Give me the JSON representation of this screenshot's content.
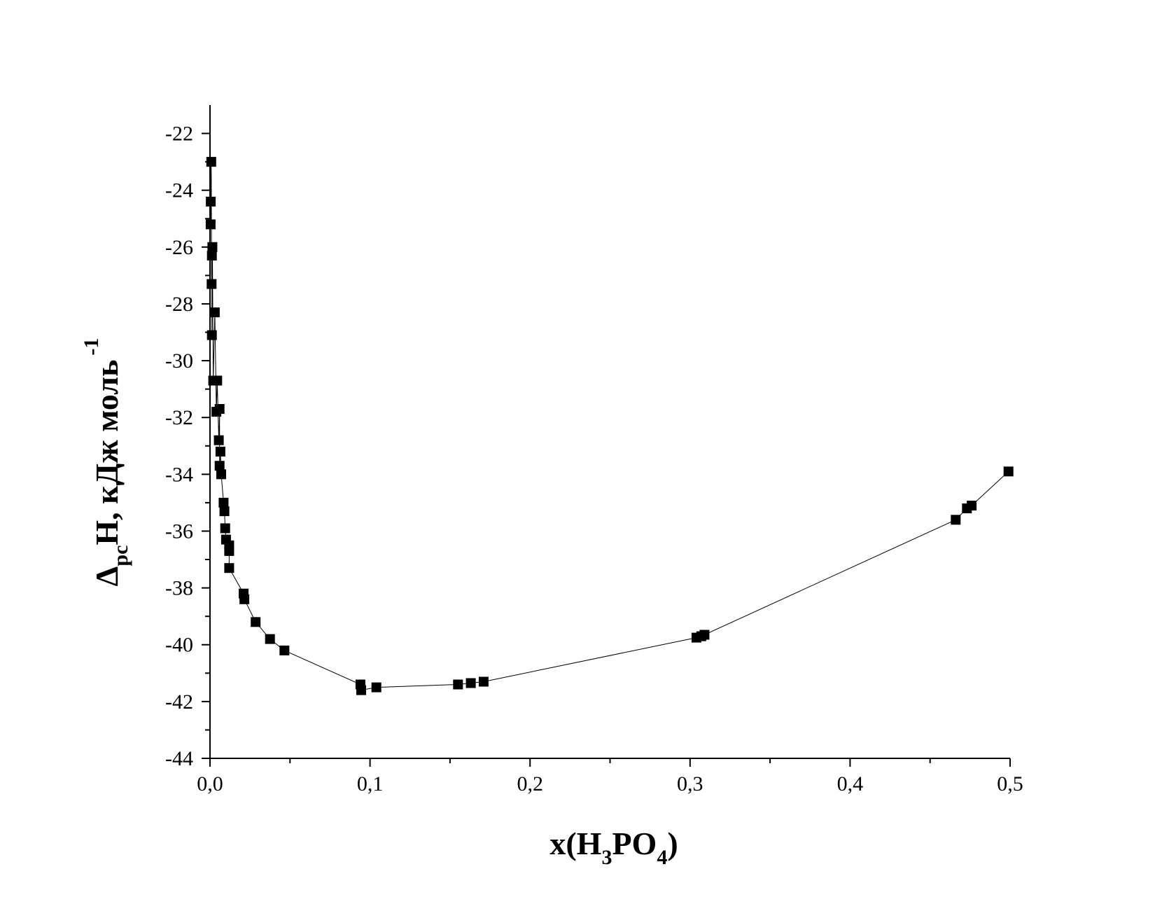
{
  "chart_data": {
    "type": "scatter",
    "xlabel": {
      "main": "x(H",
      "sub1": "3",
      "mid": "PO",
      "sub2": "4",
      "end": ")"
    },
    "ylabel": {
      "delta": "Δ",
      "sub": "рс",
      "main": "H, кДж моль",
      "sup": "-1"
    },
    "xlim": [
      0,
      0.5
    ],
    "ylim": [
      -44,
      -21
    ],
    "x_ticks": [
      {
        "value": 0.0,
        "label": "0,0"
      },
      {
        "value": 0.1,
        "label": "0,1"
      },
      {
        "value": 0.2,
        "label": "0,2"
      },
      {
        "value": 0.3,
        "label": "0,3"
      },
      {
        "value": 0.4,
        "label": "0,4"
      },
      {
        "value": 0.5,
        "label": "0,5"
      }
    ],
    "y_ticks": [
      {
        "value": -22,
        "label": "-22"
      },
      {
        "value": -24,
        "label": "-24"
      },
      {
        "value": -26,
        "label": "-26"
      },
      {
        "value": -28,
        "label": "-28"
      },
      {
        "value": -30,
        "label": "-30"
      },
      {
        "value": -32,
        "label": "-32"
      },
      {
        "value": -34,
        "label": "-34"
      },
      {
        "value": -36,
        "label": "-36"
      },
      {
        "value": -38,
        "label": "-38"
      },
      {
        "value": -40,
        "label": "-40"
      },
      {
        "value": -42,
        "label": "-42"
      },
      {
        "value": -44,
        "label": "-44"
      }
    ],
    "grid": false,
    "legend": "none",
    "marker": "square",
    "line_connected": true,
    "color": "#000000",
    "series": [
      {
        "points": [
          [
            0.0008,
            -23.0
          ],
          [
            0.0005,
            -24.4
          ],
          [
            0.0004,
            -25.2
          ],
          [
            0.0015,
            -26.0
          ],
          [
            0.0012,
            -26.3
          ],
          [
            0.001,
            -27.3
          ],
          [
            0.003,
            -28.3
          ],
          [
            0.0012,
            -29.1
          ],
          [
            0.002,
            -30.7
          ],
          [
            0.0045,
            -30.7
          ],
          [
            0.004,
            -31.8
          ],
          [
            0.006,
            -31.7
          ],
          [
            0.0055,
            -32.8
          ],
          [
            0.0065,
            -33.2
          ],
          [
            0.006,
            -33.7
          ],
          [
            0.007,
            -34.0
          ],
          [
            0.0085,
            -35.0
          ],
          [
            0.009,
            -35.3
          ],
          [
            0.0095,
            -35.9
          ],
          [
            0.01,
            -36.3
          ],
          [
            0.012,
            -36.5
          ],
          [
            0.012,
            -36.7
          ],
          [
            0.012,
            -37.3
          ],
          [
            0.021,
            -38.2
          ],
          [
            0.0215,
            -38.4
          ],
          [
            0.0285,
            -39.2
          ],
          [
            0.0375,
            -39.8
          ],
          [
            0.0465,
            -40.2
          ],
          [
            0.094,
            -41.4
          ],
          [
            0.0945,
            -41.6
          ],
          [
            0.104,
            -41.5
          ],
          [
            0.155,
            -41.4
          ],
          [
            0.163,
            -41.35
          ],
          [
            0.171,
            -41.3
          ],
          [
            0.304,
            -39.75
          ],
          [
            0.307,
            -39.7
          ],
          [
            0.309,
            -39.65
          ],
          [
            0.466,
            -35.6
          ],
          [
            0.473,
            -35.2
          ],
          [
            0.476,
            -35.1
          ],
          [
            0.499,
            -33.9
          ]
        ]
      }
    ]
  }
}
